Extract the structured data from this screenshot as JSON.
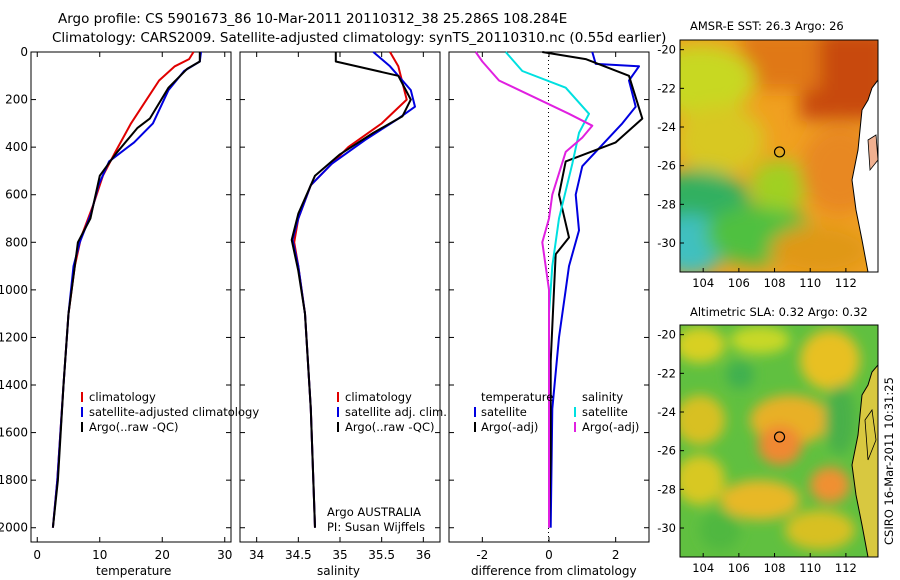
{
  "titles": {
    "line1": "Argo profile: CS 5901673_86 10-Mar-2011 20110312_38 25.286S 108.284E",
    "line2": "Climatology: CARS2009. Satellite-adjusted climatology: synTS_20110310.nc (0.55d earlier)"
  },
  "credit": "CSIRO 16-Mar-2011 10:31:25",
  "colors": {
    "climatology": "#e00000",
    "satellite": "#0000e0",
    "argo": "#000000",
    "salinity_sat": "#00e0e0",
    "salinity_argo": "#e020e0"
  },
  "chart_data": [
    {
      "type": "line",
      "id": "temperature",
      "xlabel": "temperature",
      "ylabel": "",
      "xlim": [
        -1,
        31
      ],
      "ylim": [
        2060,
        0
      ],
      "xticks": [
        "0",
        "10",
        "20",
        "30"
      ],
      "xtick_values": [
        0,
        10,
        20,
        30
      ],
      "yticks": [
        "0",
        "200",
        "400",
        "600",
        "800",
        "1000",
        "1200",
        "1400",
        "1600",
        "1800",
        "2000"
      ],
      "ytick_values": [
        0,
        200,
        400,
        600,
        800,
        1000,
        1200,
        1400,
        1600,
        1800,
        2000
      ],
      "legend": [
        "climatology",
        "satellite-adjusted climatology",
        "Argo(..raw -QC)"
      ],
      "series": [
        {
          "name": "climatology",
          "color": "#e00000",
          "points": [
            [
              25,
              0
            ],
            [
              24.3,
              30
            ],
            [
              22,
              60
            ],
            [
              19.5,
              120
            ],
            [
              17.5,
              200
            ],
            [
              15,
              300
            ],
            [
              12.5,
              420
            ],
            [
              10.5,
              520
            ],
            [
              9,
              640
            ],
            [
              7,
              780
            ],
            [
              6,
              900
            ],
            [
              5,
              1100
            ],
            [
              4.2,
              1400
            ],
            [
              3.2,
              1800
            ],
            [
              2.5,
              2000
            ]
          ]
        },
        {
          "name": "satellite-adjusted climatology",
          "color": "#0000e0",
          "points": [
            [
              26.2,
              0
            ],
            [
              26,
              40
            ],
            [
              23.5,
              80
            ],
            [
              21,
              160
            ],
            [
              18.5,
              300
            ],
            [
              15.5,
              380
            ],
            [
              11.5,
              460
            ],
            [
              9.8,
              560
            ],
            [
              8.6,
              680
            ],
            [
              6.8,
              800
            ],
            [
              5.8,
              900
            ],
            [
              5,
              1100
            ],
            [
              4.2,
              1400
            ],
            [
              3.2,
              1800
            ],
            [
              2.5,
              2000
            ]
          ]
        },
        {
          "name": "Argo(..raw -QC)",
          "color": "#000000",
          "points": [
            [
              26,
              0
            ],
            [
              26,
              40
            ],
            [
              24,
              70
            ],
            [
              21,
              150
            ],
            [
              18,
              280
            ],
            [
              16,
              320
            ],
            [
              12.5,
              430
            ],
            [
              10,
              520
            ],
            [
              8.5,
              700
            ],
            [
              6.5,
              800
            ],
            [
              6,
              900
            ],
            [
              5,
              1100
            ],
            [
              4.2,
              1400
            ],
            [
              3.3,
              1800
            ],
            [
              2.5,
              2000
            ]
          ]
        }
      ]
    },
    {
      "type": "line",
      "id": "salinity",
      "xlabel": "salinity",
      "ylabel": "",
      "xlim": [
        33.8,
        36.2
      ],
      "ylim": [
        2060,
        0
      ],
      "xticks": [
        "34",
        "34.5",
        "35",
        "35.5",
        "36"
      ],
      "xtick_values": [
        34,
        34.5,
        35,
        35.5,
        36
      ],
      "legend": [
        "climatology",
        "satellite adj. clim.",
        "Argo(..raw -QC)"
      ],
      "annotation": [
        "Argo AUSTRALIA",
        "PI: Susan Wijffels"
      ],
      "series": [
        {
          "name": "climatology",
          "color": "#e00000",
          "points": [
            [
              35.6,
              0
            ],
            [
              35.7,
              60
            ],
            [
              35.8,
              200
            ],
            [
              35.5,
              300
            ],
            [
              35.1,
              400
            ],
            [
              34.9,
              470
            ],
            [
              34.65,
              560
            ],
            [
              34.5,
              700
            ],
            [
              34.45,
              800
            ],
            [
              34.5,
              900
            ],
            [
              34.58,
              1100
            ],
            [
              34.65,
              1500
            ],
            [
              34.7,
              2000
            ]
          ]
        },
        {
          "name": "satellite adj. clim.",
          "color": "#0000e0",
          "points": [
            [
              35.4,
              0
            ],
            [
              35.6,
              60
            ],
            [
              35.85,
              160
            ],
            [
              35.9,
              230
            ],
            [
              35.7,
              280
            ],
            [
              35.3,
              370
            ],
            [
              34.9,
              470
            ],
            [
              34.65,
              560
            ],
            [
              34.5,
              700
            ],
            [
              34.43,
              790
            ],
            [
              34.5,
              900
            ],
            [
              34.58,
              1100
            ],
            [
              34.65,
              1500
            ],
            [
              34.7,
              2000
            ]
          ]
        },
        {
          "name": "Argo(..raw -QC)",
          "color": "#000000",
          "points": [
            [
              34.95,
              0
            ],
            [
              34.95,
              40
            ],
            [
              35.7,
              100
            ],
            [
              35.85,
              200
            ],
            [
              35.75,
              270
            ],
            [
              35.4,
              340
            ],
            [
              35,
              430
            ],
            [
              34.7,
              520
            ],
            [
              34.5,
              680
            ],
            [
              34.42,
              790
            ],
            [
              34.5,
              920
            ],
            [
              34.58,
              1100
            ],
            [
              34.65,
              1500
            ],
            [
              34.7,
              2000
            ]
          ]
        }
      ]
    },
    {
      "type": "line",
      "id": "difference",
      "xlabel": "difference from climatology",
      "ylabel": "",
      "xlim": [
        -3,
        3
      ],
      "ylim": [
        2060,
        0
      ],
      "xticks": [
        "-2",
        "0",
        "2"
      ],
      "xtick_values": [
        -2,
        0,
        2
      ],
      "legend": [
        "temperature",
        "satellite",
        "Argo(-adj)",
        "salinity",
        "satellite",
        "Argo(-adj)"
      ],
      "series": [
        {
          "name": "temperature satellite",
          "color": "#0000e0",
          "points": [
            [
              1.3,
              0
            ],
            [
              1.4,
              50
            ],
            [
              2.7,
              60
            ],
            [
              2.4,
              120
            ],
            [
              2.6,
              230
            ],
            [
              2.2,
              300
            ],
            [
              1,
              480
            ],
            [
              0.8,
              600
            ],
            [
              0.9,
              750
            ],
            [
              0.6,
              900
            ],
            [
              0.5,
              1000
            ],
            [
              0.3,
              1200
            ],
            [
              0.1,
              1500
            ],
            [
              0.05,
              2000
            ]
          ]
        },
        {
          "name": "temperature Argo(-adj)",
          "color": "#000000",
          "points": [
            [
              -0.2,
              0
            ],
            [
              1.1,
              30
            ],
            [
              2.4,
              100
            ],
            [
              2.8,
              280
            ],
            [
              2,
              380
            ],
            [
              0.5,
              460
            ],
            [
              0.3,
              600
            ],
            [
              0.6,
              780
            ],
            [
              0.2,
              850
            ],
            [
              0.15,
              1000
            ],
            [
              0.05,
              1300
            ],
            [
              0.05,
              1700
            ],
            [
              0,
              2000
            ]
          ]
        },
        {
          "name": "salinity satellite",
          "color": "#00e0e0",
          "points": [
            [
              -1.3,
              0
            ],
            [
              -0.8,
              80
            ],
            [
              0.5,
              150
            ],
            [
              1.2,
              260
            ],
            [
              0.9,
              340
            ],
            [
              0.7,
              470
            ],
            [
              0.3,
              700
            ],
            [
              0.1,
              900
            ],
            [
              0,
              1100
            ],
            [
              0,
              1500
            ],
            [
              0,
              2000
            ]
          ]
        },
        {
          "name": "salinity Argo(-adj)",
          "color": "#e020e0",
          "points": [
            [
              -2.2,
              0
            ],
            [
              -2,
              40
            ],
            [
              -1.5,
              120
            ],
            [
              0.6,
              260
            ],
            [
              1.3,
              310
            ],
            [
              1.0,
              360
            ],
            [
              0.5,
              420
            ],
            [
              0.1,
              600
            ],
            [
              0,
              700
            ],
            [
              -0.2,
              800
            ],
            [
              0,
              1000
            ],
            [
              0,
              1500
            ],
            [
              0,
              2000
            ]
          ]
        }
      ]
    },
    {
      "type": "heatmap",
      "id": "sst_map",
      "title": "AMSR-E SST: 26.3 Argo: 26",
      "xlim": [
        102.7,
        113.8
      ],
      "ylim": [
        -31.5,
        -19.5
      ],
      "xticks": [
        "104",
        "106",
        "108",
        "110",
        "112"
      ],
      "xtick_values": [
        104,
        106,
        108,
        110,
        112
      ],
      "yticks": [
        "-20",
        "-22",
        "-24",
        "-26",
        "-28",
        "-30"
      ],
      "ytick_values": [
        -20,
        -22,
        -24,
        -26,
        -28,
        -30
      ],
      "marker": [
        108.28,
        -25.29
      ]
    },
    {
      "type": "heatmap",
      "id": "sla_map",
      "title": "Altimetric SLA: 0.32 Argo: 0.32",
      "xlim": [
        102.7,
        113.8
      ],
      "ylim": [
        -31.5,
        -19.5
      ],
      "xticks": [
        "104",
        "106",
        "108",
        "110",
        "112"
      ],
      "xtick_values": [
        104,
        106,
        108,
        110,
        112
      ],
      "yticks": [
        "-20",
        "-22",
        "-24",
        "-26",
        "-28",
        "-30"
      ],
      "ytick_values": [
        -20,
        -22,
        -24,
        -26,
        -28,
        -30
      ],
      "marker": [
        108.28,
        -25.29
      ]
    }
  ]
}
